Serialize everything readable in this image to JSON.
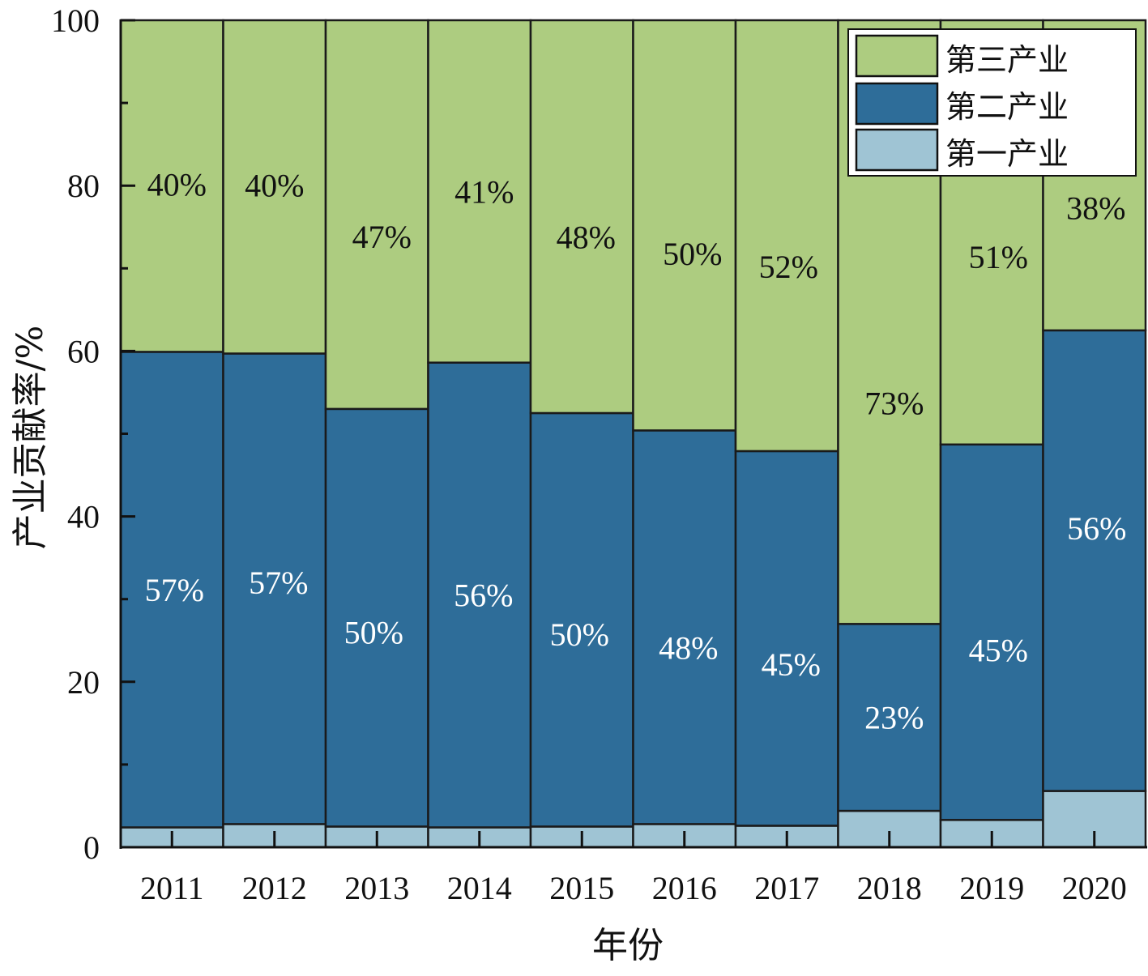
{
  "chart_data": {
    "type": "bar",
    "stacked": true,
    "title": "",
    "xlabel": "年份",
    "ylabel": "产业贡献率/%",
    "ylim": [
      0,
      100
    ],
    "yticks": [
      "0",
      "20",
      "40",
      "60",
      "80",
      "100"
    ],
    "grid": false,
    "legend_position": "top-right",
    "categories": [
      "2011",
      "2012",
      "2013",
      "2014",
      "2015",
      "2016",
      "2017",
      "2018",
      "2019",
      "2020"
    ],
    "series": [
      {
        "name": "第一产业",
        "color": "#9fc4d4",
        "values": [
          2.4,
          2.8,
          2.5,
          2.4,
          2.5,
          2.8,
          2.6,
          4.4,
          3.3,
          6.8
        ],
        "labels": [
          "",
          "",
          "",
          "",
          "",
          "",
          "",
          "",
          "",
          ""
        ]
      },
      {
        "name": "第二产业",
        "color": "#2e6d99",
        "values": [
          57.5,
          56.9,
          50.5,
          56.2,
          50.0,
          47.6,
          45.3,
          22.6,
          45.4,
          55.7
        ],
        "labels": [
          "57%",
          "57%",
          "50%",
          "56%",
          "50%",
          "48%",
          "45%",
          "23%",
          "45%",
          "56%"
        ]
      },
      {
        "name": "第三产业",
        "color": "#adcc80",
        "values": [
          40.1,
          40.3,
          47.0,
          41.4,
          47.5,
          49.6,
          52.1,
          73.0,
          51.3,
          37.5
        ],
        "labels": [
          "40%",
          "40%",
          "47%",
          "41%",
          "48%",
          "50%",
          "52%",
          "73%",
          "51%",
          "38%"
        ]
      }
    ],
    "legend": [
      "第三产业",
      "第二产业",
      "第一产业"
    ]
  }
}
